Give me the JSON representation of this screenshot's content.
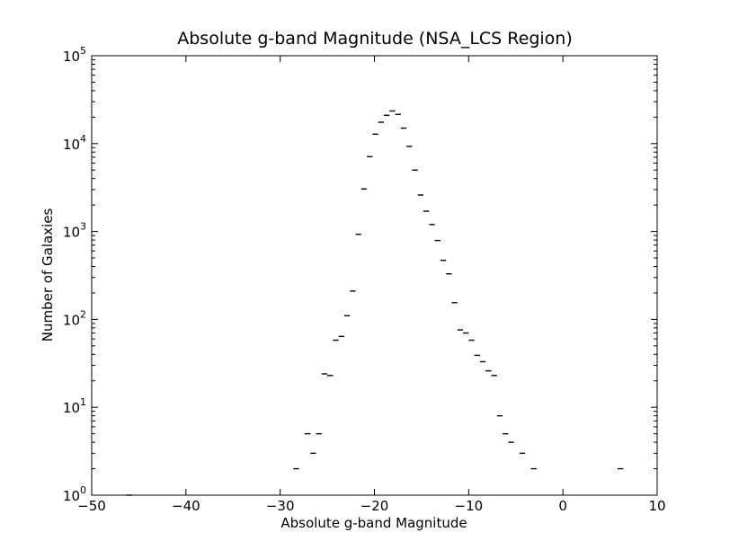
{
  "chart_data": {
    "type": "histogram",
    "title": "Absolute g-band Magnitude (NSA_LCS Region)",
    "xlabel": "Absolute g-band Magnitude",
    "ylabel": "Number of Galaxies",
    "xlim": [
      -50,
      10
    ],
    "ylim": [
      1,
      100000
    ],
    "yscale": "log",
    "grid": false,
    "xticks": [
      {
        "value": -50,
        "label": "−50"
      },
      {
        "value": -40,
        "label": "−40"
      },
      {
        "value": -30,
        "label": "−30"
      },
      {
        "value": -20,
        "label": "−20"
      },
      {
        "value": -10,
        "label": "−10"
      },
      {
        "value": 0,
        "label": "0"
      },
      {
        "value": 10,
        "label": "10"
      }
    ],
    "yticks": [
      {
        "value": 1,
        "base": "10",
        "exp": "0"
      },
      {
        "value": 10,
        "base": "10",
        "exp": "1"
      },
      {
        "value": 100,
        "base": "10",
        "exp": "2"
      },
      {
        "value": 1000,
        "base": "10",
        "exp": "3"
      },
      {
        "value": 10000,
        "base": "10",
        "exp": "4"
      },
      {
        "value": 100000,
        "base": "10",
        "exp": "5"
      }
    ],
    "bin_width": 0.6,
    "series": [
      {
        "x": [
          -46.0,
          -28.3,
          -27.1,
          -26.5,
          -25.9,
          -25.3,
          -24.7,
          -24.1,
          -23.5,
          -22.9,
          -22.3,
          -21.7,
          -21.1,
          -20.5,
          -19.9,
          -19.3,
          -18.7,
          -18.1,
          -17.5,
          -16.9,
          -16.3,
          -15.7,
          -15.1,
          -14.5,
          -13.9,
          -13.3,
          -12.7,
          -12.1,
          -11.5,
          -10.9,
          -10.3,
          -9.7,
          -9.1,
          -8.5,
          -7.9,
          -7.3,
          -6.7,
          -6.1,
          -5.5,
          -4.3,
          -3.1,
          6.1
        ],
        "values": [
          1,
          2,
          5,
          3,
          5,
          24,
          23,
          58,
          64,
          110,
          210,
          930,
          3050,
          7100,
          12800,
          17500,
          21000,
          23500,
          21500,
          15000,
          9300,
          5000,
          2600,
          1700,
          1200,
          790,
          470,
          330,
          155,
          76,
          70,
          58,
          39,
          33,
          26,
          23,
          8,
          5,
          4,
          3,
          2,
          2
        ]
      }
    ]
  }
}
